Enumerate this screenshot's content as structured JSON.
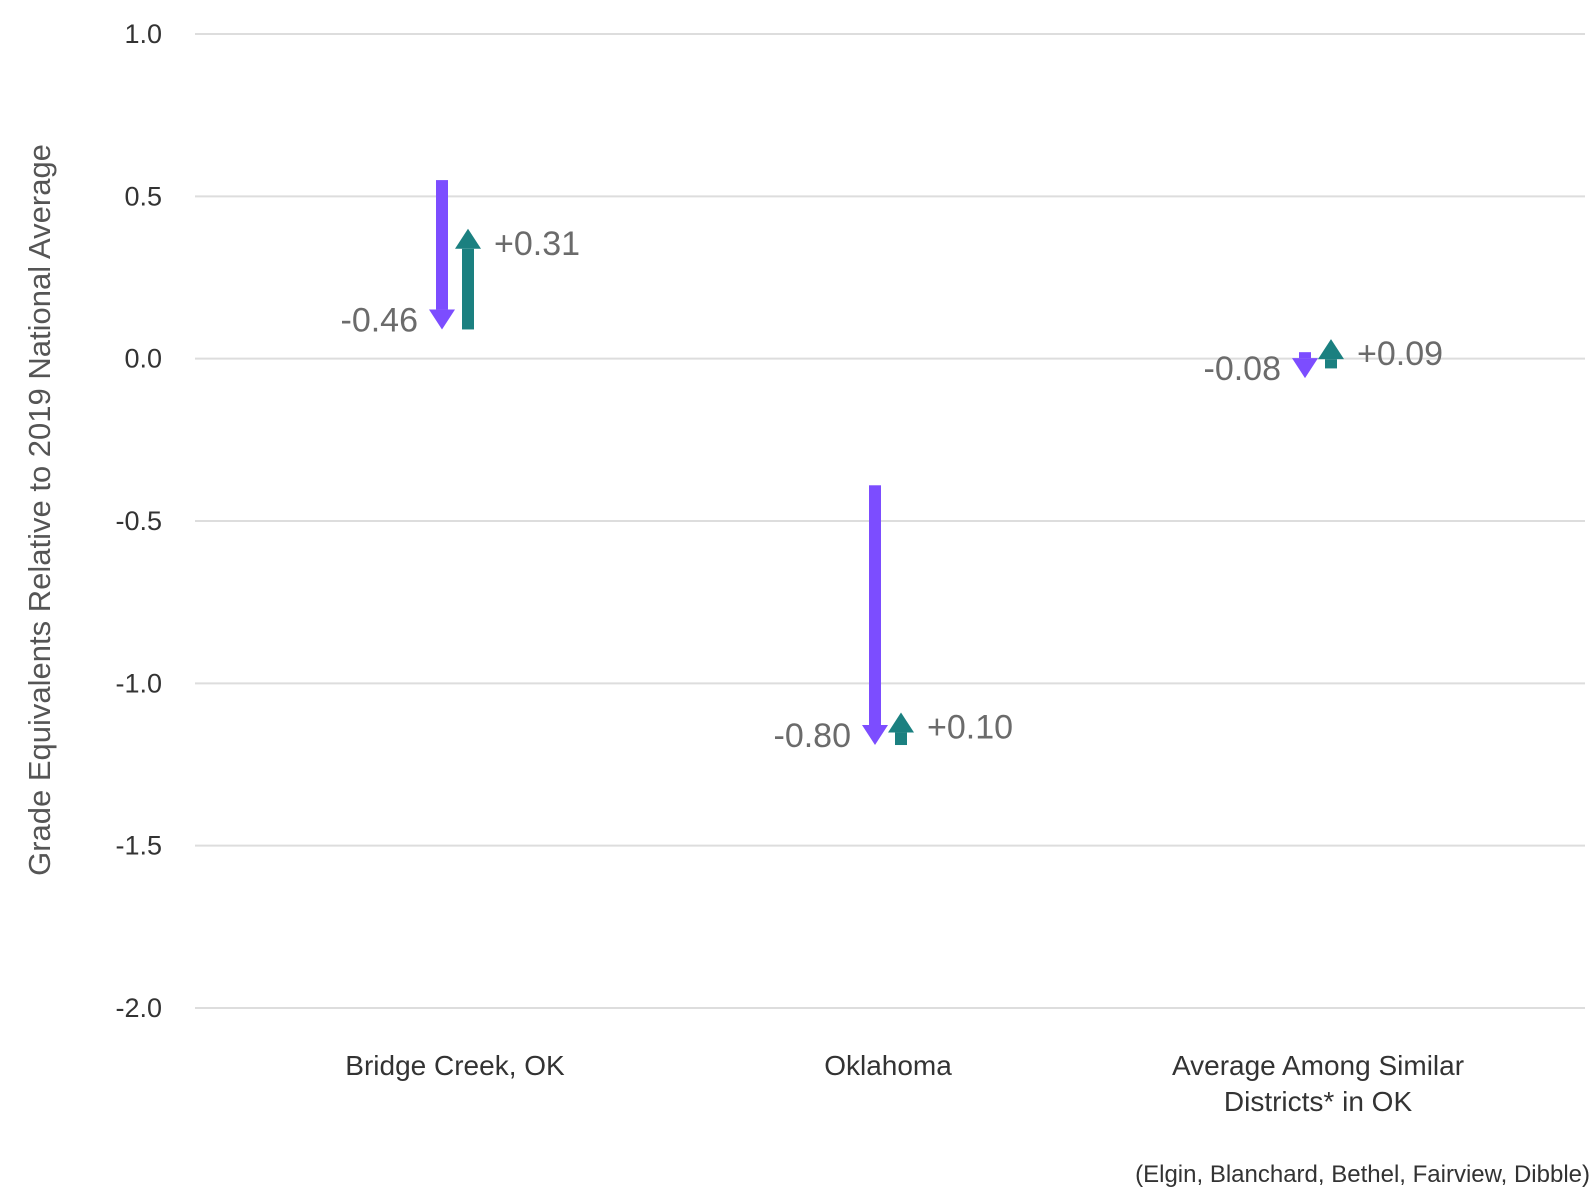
{
  "chart_data": {
    "type": "arrow",
    "ylabel": "Grade Equivalents Relative to 2019 National Average",
    "ylim": [
      -2.0,
      1.0
    ],
    "yticks": [
      1.0,
      0.5,
      0.0,
      -0.5,
      -1.0,
      -1.5,
      -2.0
    ],
    "ytick_labels": [
      "1.0",
      "0.5",
      "0.0",
      "-0.5",
      "-1.0",
      "-1.5",
      "-2.0"
    ],
    "grid": true,
    "categories": [
      [
        "Bridge Creek, OK"
      ],
      [
        "Oklahoma"
      ],
      [
        "Average Among Similar",
        "Districts* in OK"
      ]
    ],
    "series": [
      {
        "color": "#7c4dff",
        "direction": "down",
        "starts": [
          0.55,
          -0.39,
          0.02
        ],
        "ends": [
          0.09,
          -1.19,
          -0.06
        ],
        "labels": [
          "-0.46",
          "-0.80",
          "-0.08"
        ]
      },
      {
        "color": "#1b8080",
        "direction": "up",
        "starts": [
          0.09,
          -1.19,
          -0.03
        ],
        "ends": [
          0.4,
          -1.09,
          0.06
        ],
        "labels": [
          "+0.31",
          "+0.10",
          "+0.09"
        ]
      }
    ],
    "footnote": "(Elgin, Blanchard, Bethel, Fairview, Dibble)"
  }
}
